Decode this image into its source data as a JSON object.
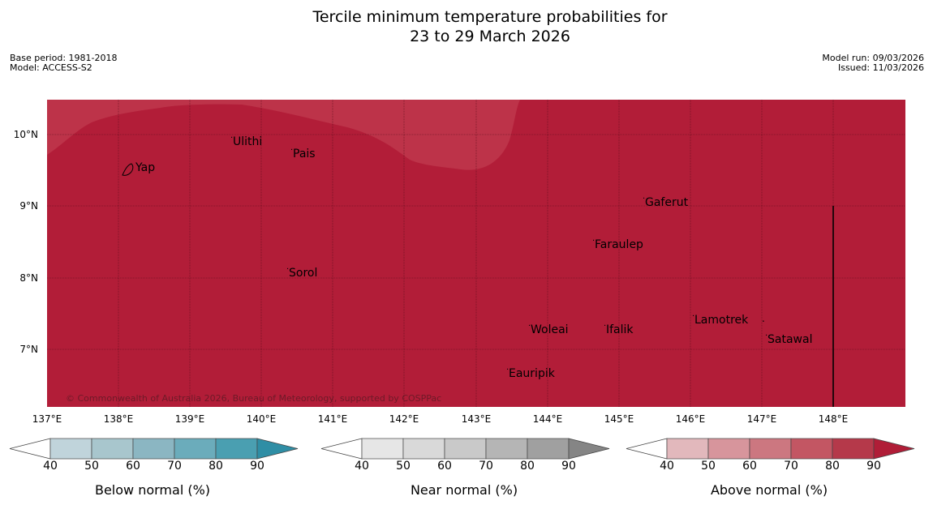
{
  "title_line1": "Tercile minimum temperature probabilities for",
  "title_line2": "23 to 29 March 2026",
  "meta_left": [
    "Base period: 1981-2018",
    "Model: ACCESS-S2"
  ],
  "meta_right": [
    "Model run: 09/03/2026",
    "Issued: 11/03/2026"
  ],
  "lat_labels": [
    "10°N",
    "9°N",
    "8°N",
    "7°N"
  ],
  "lon_labels": [
    "137°E",
    "138°E",
    "139°E",
    "140°E",
    "141°E",
    "142°E",
    "143°E",
    "144°E",
    "145°E",
    "146°E",
    "147°E",
    "148°E"
  ],
  "places": [
    "Ulithi",
    "Pais",
    "Yap",
    "Gaferut",
    "Faraulep",
    "Sorol",
    "Lamotrek",
    "Woleai",
    "Ifalik",
    "Satawal",
    "Eauripik"
  ],
  "copyright": "© Commonwealth of Australia 2026, Bureau of Meteorology, supported by COSPPac",
  "legends": [
    {
      "title": "Below normal (%)",
      "ticks": [
        "40",
        "50",
        "60",
        "70",
        "80",
        "90"
      ],
      "colors": [
        "#ffffff",
        "#c0d4db",
        "#a8c6cd",
        "#8bb6c2",
        "#6bacbb",
        "#4a9fb1",
        "#2f8ea5"
      ]
    },
    {
      "title": "Near normal (%)",
      "ticks": [
        "40",
        "50",
        "60",
        "70",
        "80",
        "90"
      ],
      "colors": [
        "#ffffff",
        "#e6e6e6",
        "#d9d9d9",
        "#c9c9c9",
        "#b5b5b5",
        "#a0a0a0",
        "#858585"
      ]
    },
    {
      "title": "Above normal (%)",
      "ticks": [
        "40",
        "50",
        "60",
        "70",
        "80",
        "90"
      ],
      "colors": [
        "#ffffff",
        "#e2b8bc",
        "#d7959c",
        "#cc7780",
        "#c35663",
        "#b5394a",
        "#b01d37"
      ]
    }
  ],
  "map_colors": {
    "dominant": "#b21d38",
    "secondary": "#bd3349"
  }
}
